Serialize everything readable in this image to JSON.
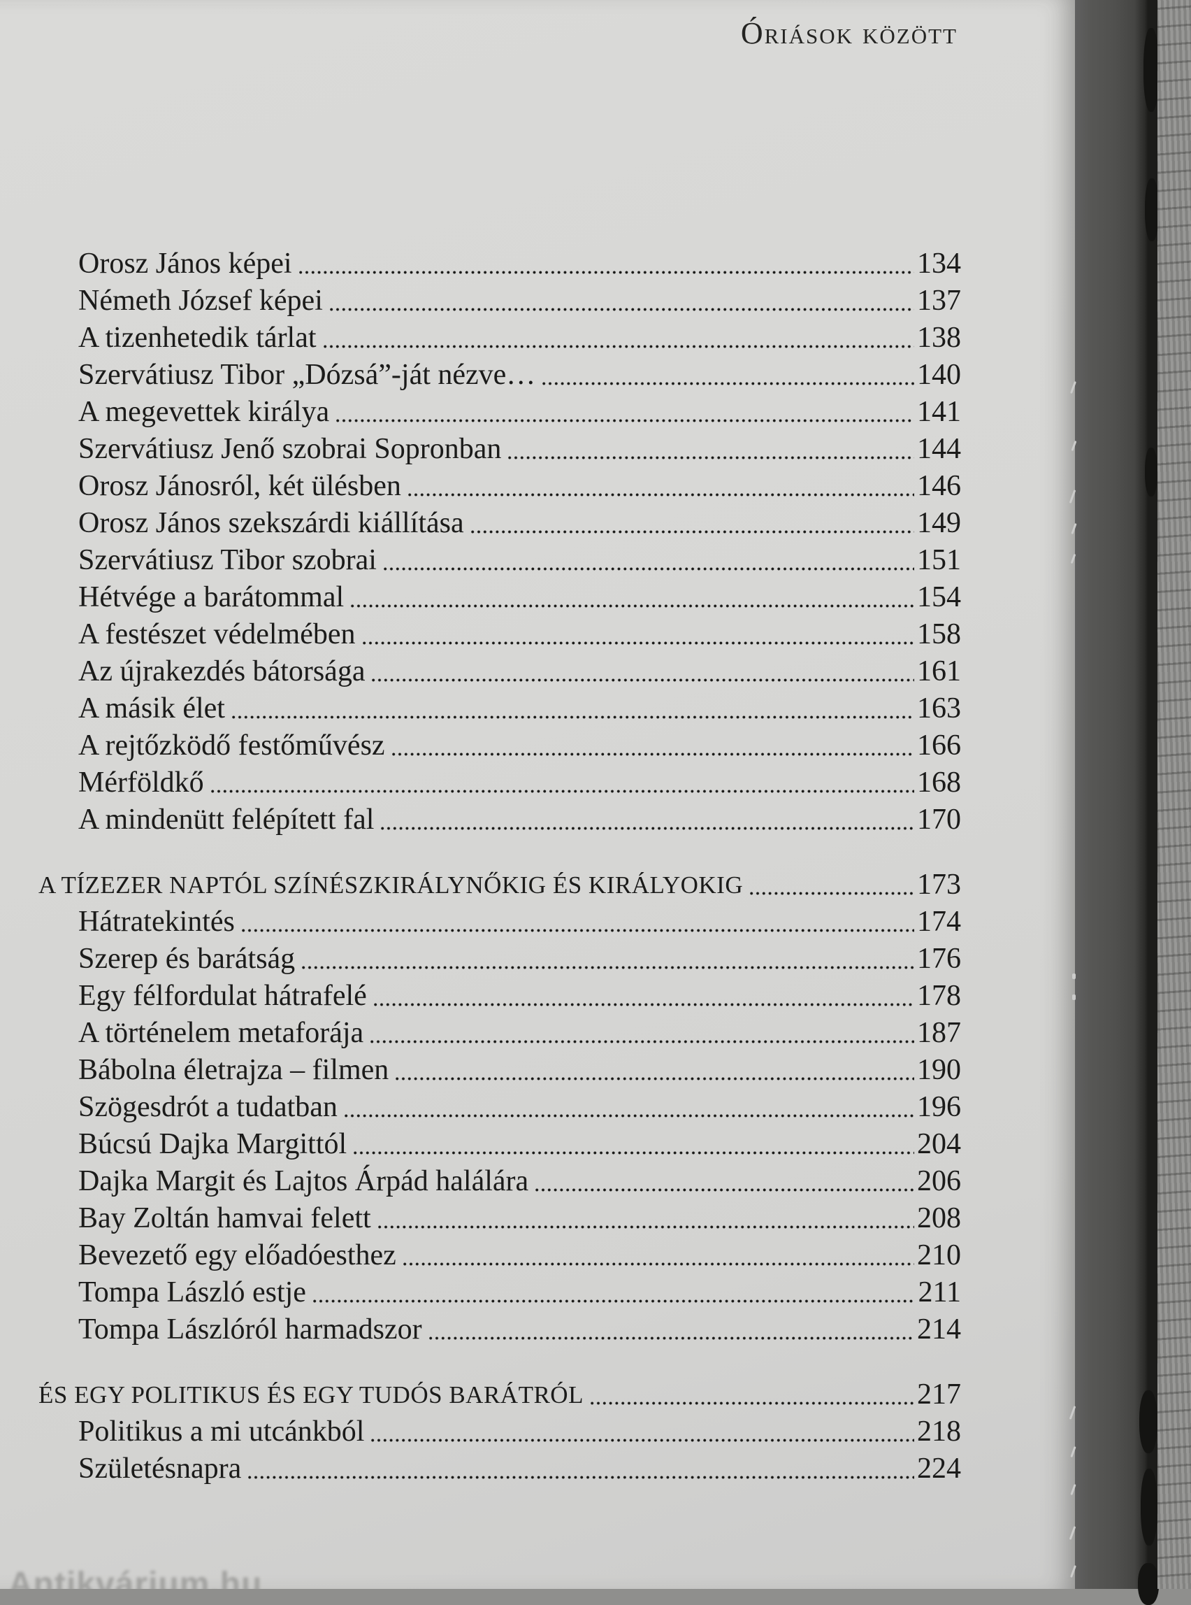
{
  "header": {
    "running_title": "Óriások között"
  },
  "toc": {
    "sections": [
      {
        "heading": null,
        "heading_page": null,
        "items": [
          {
            "title": "Orosz János képei",
            "page": "134"
          },
          {
            "title": "Németh József képei",
            "page": "137"
          },
          {
            "title": "A tizenhetedik tárlat",
            "page": "138"
          },
          {
            "title": "Szervátiusz Tibor „Dózsá”-ját nézve…",
            "page": "140"
          },
          {
            "title": "A megevettek királya",
            "page": "141"
          },
          {
            "title": "Szervátiusz Jenő szobrai Sopronban",
            "page": "144"
          },
          {
            "title": "Orosz Jánosról, két ülésben",
            "page": "146"
          },
          {
            "title": "Orosz János szekszárdi kiállítása",
            "page": "149"
          },
          {
            "title": "Szervátiusz Tibor szobrai",
            "page": "151"
          },
          {
            "title": "Hétvége a barátommal",
            "page": "154"
          },
          {
            "title": "A festészet védelmében",
            "page": "158"
          },
          {
            "title": "Az újrakezdés bátorsága",
            "page": "161"
          },
          {
            "title": "A másik élet",
            "page": "163"
          },
          {
            "title": "A rejtőzködő festőművész",
            "page": "166"
          },
          {
            "title": "Mérföldkő",
            "page": "168"
          },
          {
            "title": "A mindenütt felépített fal",
            "page": "170"
          }
        ]
      },
      {
        "heading": "A TÍZEZER NAPTÓL SZÍNÉSZKIRÁLYNŐKIG ÉS KIRÁLYOKIG",
        "heading_page": "173",
        "items": [
          {
            "title": "Hátratekintés",
            "page": "174"
          },
          {
            "title": "Szerep és barátság",
            "page": "176"
          },
          {
            "title": "Egy félfordulat hátrafelé",
            "page": "178"
          },
          {
            "title": "A történelem metaforája",
            "page": "187"
          },
          {
            "title": "Bábolna életrajza – filmen",
            "page": "190"
          },
          {
            "title": "Szögesdrót a tudatban",
            "page": "196"
          },
          {
            "title": "Búcsú Dajka Margittól",
            "page": "204"
          },
          {
            "title": "Dajka Margit és Lajtos Árpád halálára",
            "page": "206"
          },
          {
            "title": "Bay Zoltán hamvai felett",
            "page": "208"
          },
          {
            "title": "Bevezető egy előadóesthez",
            "page": "210"
          },
          {
            "title": "Tompa László estje",
            "page": "211"
          },
          {
            "title": "Tompa Lászlóról harmadszor",
            "page": "214"
          }
        ]
      },
      {
        "heading": "ÉS EGY POLITIKUS ÉS EGY TUDÓS BARÁTRÓL",
        "heading_page": "217",
        "items": [
          {
            "title": "Politikus a mi utcánkból",
            "page": "218"
          },
          {
            "title": "Születésnapra",
            "page": "224"
          }
        ]
      }
    ]
  },
  "watermark": "Antikvárium.hu",
  "colors": {
    "paper": "#d7d7d5",
    "ink": "#1b1b1a",
    "page_block_edge": "#50504e",
    "spine_gap": "#1c1c1a",
    "cover_strip": "#90908e"
  }
}
